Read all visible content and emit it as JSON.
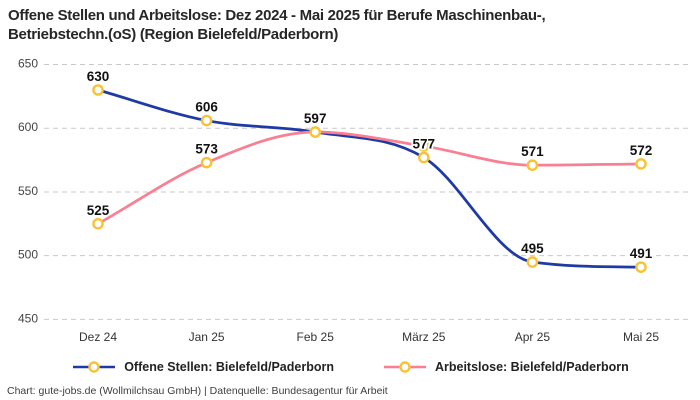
{
  "title": {
    "line1": "Offene Stellen und Arbeitslose: Dez 2024 - Mai 2025 für Berufe Maschinenbau-,",
    "line2": "Betriebstechn.(oS) (Region Bielefeld/Paderborn)"
  },
  "footer": "Chart: gute-jobs.de (Wollmilchsau GmbH) | Datenquelle: Bundesagentur für Arbeit",
  "chart_data": {
    "type": "line",
    "x_labels": [
      "Dez 24",
      "Jan 25",
      "Feb 25",
      "März 25",
      "Apr 25",
      "Mai 25"
    ],
    "y_ticks": [
      450,
      500,
      550,
      600,
      650
    ],
    "ylim": [
      450,
      650
    ],
    "grid": "horizontal-dashed",
    "grid_color": "#c9c9c9",
    "legend_position": "bottom",
    "marker": {
      "shape": "circle",
      "fill": "#ffffff",
      "ring_color": "#f9c233",
      "radius": 4.6
    },
    "series": [
      {
        "name": "Offene Stellen: Bielefeld/Paderborn",
        "color": "#1f3aa5",
        "values": [
          630,
          606,
          597,
          577,
          495,
          491
        ],
        "point_labels": [
          "630",
          "606",
          "597",
          "577",
          "495",
          "491"
        ]
      },
      {
        "name": "Arbeitslose: Bielefeld/Paderborn",
        "color": "#f97f93",
        "values": [
          525,
          573,
          597,
          586,
          571,
          572
        ],
        "point_labels": [
          "525",
          "573",
          "",
          "",
          "571",
          "572"
        ]
      }
    ]
  }
}
